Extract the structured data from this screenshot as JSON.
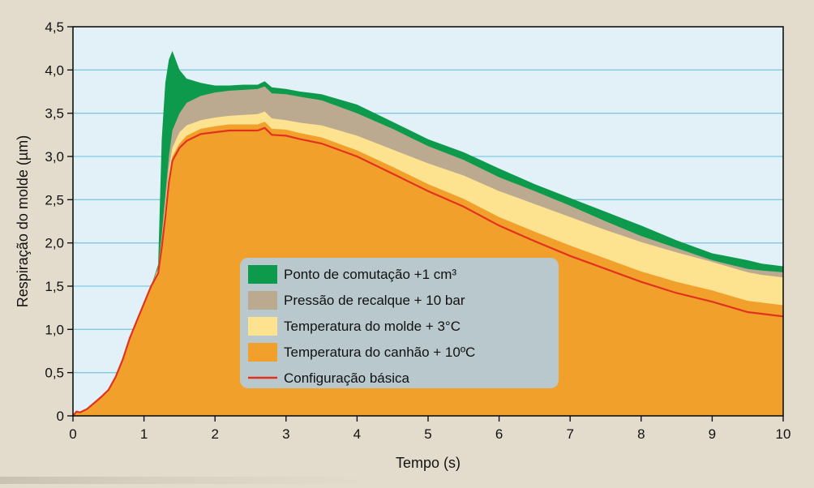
{
  "chart_data": {
    "type": "area",
    "title": "",
    "xlabel": "Tempo (s)",
    "ylabel": "Respiração do molde (µm)",
    "xlim": [
      0,
      10
    ],
    "ylim": [
      0,
      4.5
    ],
    "grid": true,
    "legend_position": "center-bottom",
    "x_ticks": [
      "0",
      "1",
      "2",
      "3",
      "4",
      "5",
      "6",
      "7",
      "8",
      "9",
      "10"
    ],
    "y_ticks": [
      "0",
      "0,5",
      "1,0",
      "1,5",
      "2,0",
      "2,5",
      "3,0",
      "3,5",
      "4,0",
      "4,5"
    ],
    "x": [
      0,
      0.05,
      0.1,
      0.2,
      0.3,
      0.4,
      0.5,
      0.6,
      0.7,
      0.8,
      0.9,
      1.0,
      1.1,
      1.2,
      1.25,
      1.3,
      1.35,
      1.4,
      1.5,
      1.6,
      1.8,
      2.0,
      2.2,
      2.4,
      2.6,
      2.7,
      2.8,
      3.0,
      3.2,
      3.5,
      4.0,
      4.5,
      5.0,
      5.5,
      6.0,
      6.5,
      7.0,
      7.5,
      8.0,
      8.5,
      9.0,
      9.5,
      9.7,
      10.0
    ],
    "series": [
      {
        "name": "Configuração básica",
        "role": "line",
        "color": "#e2321e",
        "values": [
          0,
          0.05,
          0.04,
          0.08,
          0.15,
          0.22,
          0.3,
          0.45,
          0.65,
          0.9,
          1.1,
          1.3,
          1.5,
          1.65,
          1.95,
          2.3,
          2.7,
          2.95,
          3.1,
          3.18,
          3.26,
          3.28,
          3.3,
          3.3,
          3.3,
          3.33,
          3.25,
          3.24,
          3.2,
          3.15,
          3.0,
          2.8,
          2.6,
          2.42,
          2.2,
          2.02,
          1.85,
          1.7,
          1.55,
          1.42,
          1.32,
          1.2,
          1.18,
          1.15
        ]
      },
      {
        "name": "Temperatura do canhão + 10ºC",
        "role": "band",
        "color": "#f2a02c",
        "values": [
          0,
          0.05,
          0.04,
          0.08,
          0.15,
          0.22,
          0.3,
          0.45,
          0.65,
          0.9,
          1.1,
          1.3,
          1.5,
          1.66,
          1.98,
          2.35,
          2.75,
          3.0,
          3.15,
          3.24,
          3.32,
          3.35,
          3.37,
          3.37,
          3.37,
          3.4,
          3.32,
          3.31,
          3.27,
          3.22,
          3.07,
          2.88,
          2.68,
          2.51,
          2.3,
          2.13,
          1.97,
          1.82,
          1.67,
          1.55,
          1.45,
          1.33,
          1.31,
          1.28
        ]
      },
      {
        "name": "Temperatura do molde  + 3°C",
        "role": "band",
        "color": "#fde28f",
        "values": [
          0,
          0.05,
          0.04,
          0.08,
          0.15,
          0.22,
          0.3,
          0.45,
          0.65,
          0.9,
          1.1,
          1.3,
          1.5,
          1.7,
          2.05,
          2.45,
          2.85,
          3.1,
          3.28,
          3.36,
          3.42,
          3.45,
          3.47,
          3.48,
          3.49,
          3.52,
          3.44,
          3.42,
          3.39,
          3.36,
          3.24,
          3.08,
          2.92,
          2.78,
          2.6,
          2.45,
          2.3,
          2.15,
          2.01,
          1.89,
          1.78,
          1.66,
          1.63,
          1.6
        ]
      },
      {
        "name": "Pressão de recalque + 10 bar",
        "role": "band",
        "color": "#bba990",
        "values": [
          0,
          0.05,
          0.04,
          0.08,
          0.15,
          0.22,
          0.3,
          0.45,
          0.65,
          0.9,
          1.1,
          1.3,
          1.5,
          1.72,
          2.1,
          2.55,
          3.0,
          3.3,
          3.5,
          3.62,
          3.7,
          3.74,
          3.76,
          3.77,
          3.78,
          3.81,
          3.73,
          3.72,
          3.69,
          3.65,
          3.5,
          3.32,
          3.12,
          2.96,
          2.76,
          2.6,
          2.43,
          2.25,
          2.08,
          1.94,
          1.8,
          1.7,
          1.68,
          1.66
        ]
      },
      {
        "name": "Ponto de comutação +1 cm³",
        "role": "band",
        "color": "#0d9a4c",
        "values": [
          0,
          0.05,
          0.04,
          0.08,
          0.15,
          0.22,
          0.3,
          0.45,
          0.65,
          0.9,
          1.1,
          1.3,
          1.5,
          1.75,
          3.2,
          3.85,
          4.12,
          4.22,
          4.0,
          3.9,
          3.85,
          3.82,
          3.82,
          3.83,
          3.83,
          3.87,
          3.8,
          3.78,
          3.75,
          3.72,
          3.6,
          3.4,
          3.2,
          3.05,
          2.86,
          2.68,
          2.52,
          2.36,
          2.2,
          2.03,
          1.88,
          1.8,
          1.76,
          1.73
        ]
      }
    ],
    "legend": [
      {
        "label": "Ponto de comutação +1 cm³",
        "color": "#0d9a4c",
        "kind": "swatch"
      },
      {
        "label": "Pressão de recalque + 10 bar",
        "color": "#bba990",
        "kind": "swatch"
      },
      {
        "label": "Temperatura do molde  + 3°C",
        "color": "#fde28f",
        "kind": "swatch"
      },
      {
        "label": "Temperatura do canhão + 10ºC",
        "color": "#f2a02c",
        "kind": "swatch"
      },
      {
        "label": "Configuração básica",
        "color": "#e2321e",
        "kind": "line"
      }
    ],
    "colors": {
      "plot_background": "#e1f1f7",
      "grid": "#7fc9e2",
      "page_background": "#e3dccd",
      "legend_background": "#b9c8cd"
    }
  }
}
